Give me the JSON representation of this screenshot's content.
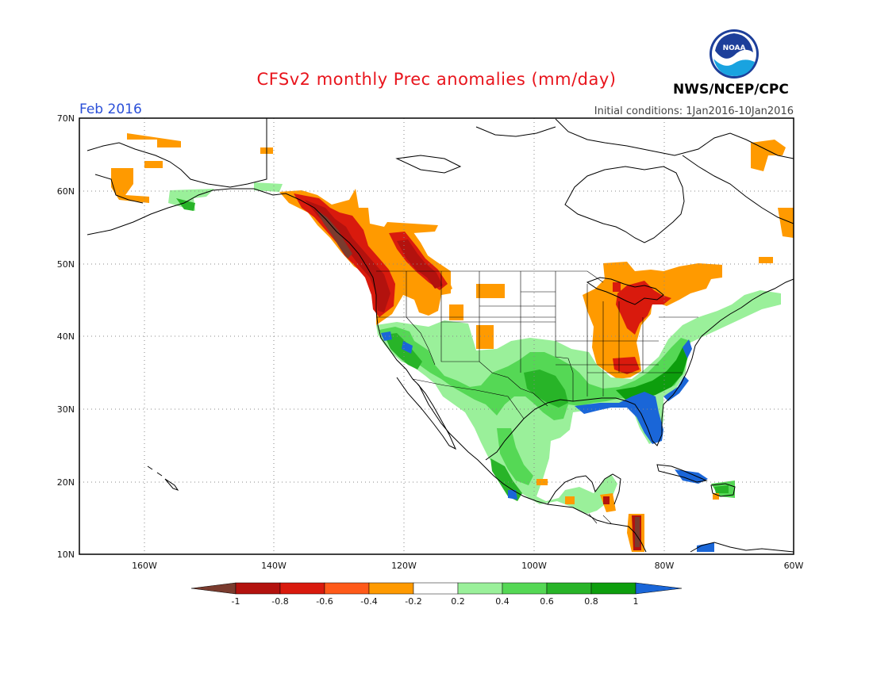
{
  "header": {
    "title": "CFSv2 monthly Prec anomalies (mm/day)",
    "period": "Feb 2016",
    "initial_conditions": "Initial conditions: 1Jan2016-10Jan2016",
    "agency": "NWS/NCEP/CPC",
    "logo_text": "NOAA"
  },
  "map": {
    "lon_range": [
      -170,
      -60
    ],
    "lat_range": [
      10,
      70
    ],
    "lat_labels": [
      "70N",
      "60N",
      "50N",
      "40N",
      "30N",
      "20N",
      "10N"
    ],
    "lon_labels": [
      "160W",
      "140W",
      "120W",
      "100W",
      "80W",
      "60W"
    ]
  },
  "colorbar": {
    "tick_labels": [
      "-1",
      "-0.8",
      "-0.6",
      "-0.4",
      "-0.2",
      "0.2",
      "0.4",
      "0.6",
      "0.8",
      "1"
    ],
    "colors": [
      "#7a3b2e",
      "#b3120e",
      "#d91a0d",
      "#ff5a1a",
      "#ff9a00",
      "#ffffff",
      "#9af09a",
      "#55d855",
      "#28b428",
      "#0d9e0d",
      "#1a66d8"
    ]
  }
}
